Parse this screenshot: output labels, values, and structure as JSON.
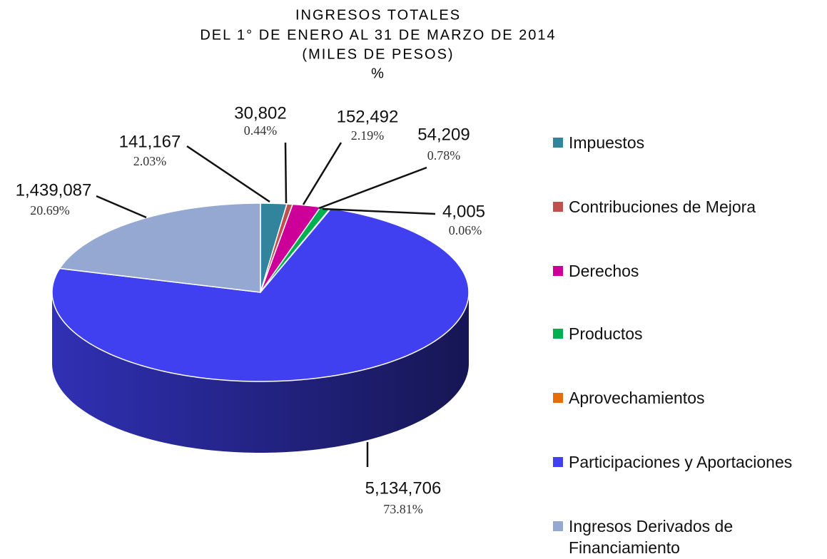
{
  "chart_data": {
    "type": "pie",
    "title_lines": [
      "INGRESOS TOTALES",
      "DEL 1° DE ENERO AL 31 DE MARZO DE 2014",
      "(MILES DE PESOS)",
      "%"
    ],
    "categories": [
      "Impuestos",
      "Contribuciones de Mejora",
      "Derechos",
      "Productos",
      "Aprovechamientos",
      "Participaciones y Aportaciones",
      "Ingresos Derivados de Financiamiento"
    ],
    "values": [
      141167,
      30802,
      152492,
      54209,
      4005,
      5134706,
      1439087
    ],
    "value_labels": [
      "141,167",
      "30,802",
      "152,492",
      "54,209",
      "4,005",
      "5,134,706",
      "1,439,087"
    ],
    "percent_labels": [
      "2.03%",
      "0.44%",
      "2.19%",
      "0.78%",
      "0.06%",
      "73.81%",
      "20.69%"
    ],
    "colors": [
      "#31849b",
      "#c0504d",
      "#cc0099",
      "#00b050",
      "#e46c0a",
      "#4040f0",
      "#95a8d2"
    ],
    "legend": "right"
  }
}
